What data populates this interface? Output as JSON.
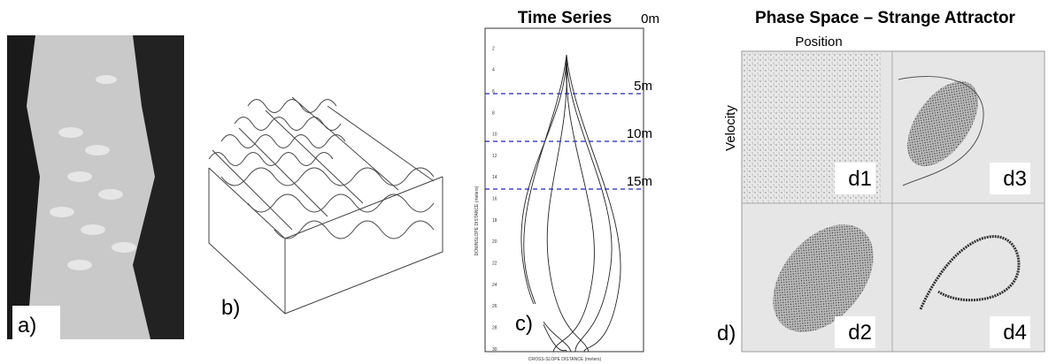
{
  "panels": {
    "a": {
      "label": "a)"
    },
    "b": {
      "label": "b)"
    },
    "c": {
      "label": "c)",
      "title": "Time Series",
      "y_axis_label": "DOWNSLOPE DISTANCE (meters)",
      "x_axis_label": "CROSS-SLOPE DISTANCE (meters)",
      "markers": [
        "0m",
        "5m",
        "10m",
        "15m"
      ],
      "yticks": [
        "2",
        "4",
        "6",
        "8",
        "10",
        "12",
        "14",
        "16",
        "18",
        "20",
        "22",
        "24",
        "26",
        "28",
        "30"
      ]
    },
    "d": {
      "label": "d)",
      "title": "Phase Space – Strange Attractor",
      "x_axis_label": "Position",
      "y_axis_label": "Velocity",
      "subpanels": [
        "d1",
        "d2",
        "d3",
        "d4"
      ]
    }
  }
}
